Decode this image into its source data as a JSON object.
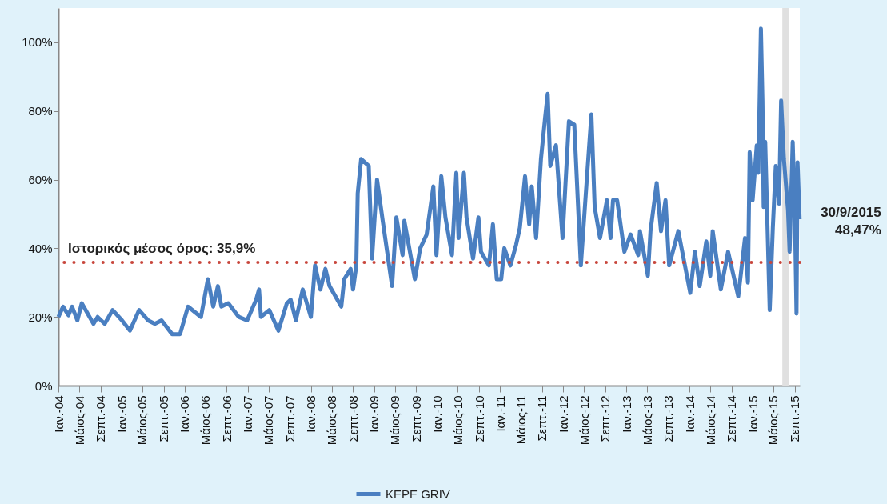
{
  "chart_data": {
    "type": "line",
    "x": [
      "2004-01-01",
      "2004-01-28",
      "2004-02-28",
      "2004-03-20",
      "2004-04-20",
      "2004-05-15",
      "2004-07-22",
      "2004-08-15",
      "2004-09-25",
      "2004-11-10",
      "2005-01-03",
      "2005-02-18",
      "2005-04-12",
      "2005-06-03",
      "2005-07-12",
      "2005-08-20",
      "2005-10-20",
      "2005-12-05",
      "2006-01-20",
      "2006-04-05",
      "2006-05-15",
      "2006-06-15",
      "2006-07-12",
      "2006-08-01",
      "2006-09-10",
      "2006-11-10",
      "2006-12-28",
      "2007-02-18",
      "2007-03-07",
      "2007-03-18",
      "2007-05-05",
      "2007-06-27",
      "2007-08-15",
      "2007-09-06",
      "2007-10-06",
      "2007-11-15",
      "2008-01-01",
      "2008-01-25",
      "2008-02-25",
      "2008-03-25",
      "2008-04-18",
      "2008-06-25",
      "2008-07-12",
      "2008-08-18",
      "2008-09-01",
      "2008-09-20",
      "2008-09-28",
      "2008-10-18",
      "2008-12-01",
      "2008-12-20",
      "2009-01-18",
      "2009-02-20",
      "2009-04-15",
      "2009-05-10",
      "2009-06-15",
      "2009-06-25",
      "2009-08-25",
      "2009-09-25",
      "2009-11-01",
      "2009-12-10",
      "2009-12-28",
      "2010-01-25",
      "2010-02-18",
      "2010-03-28",
      "2010-04-22",
      "2010-05-05",
      "2010-06-05",
      "2010-06-20",
      "2010-07-28",
      "2010-08-28",
      "2010-09-12",
      "2010-10-28",
      "2010-11-20",
      "2010-12-12",
      "2011-01-07",
      "2011-01-25",
      "2011-03-01",
      "2011-04-03",
      "2011-04-25",
      "2011-05-25",
      "2011-06-18",
      "2011-07-03",
      "2011-07-28",
      "2011-08-25",
      "2011-09-18",
      "2011-10-03",
      "2011-10-18",
      "2011-11-20",
      "2011-12-28",
      "2012-02-03",
      "2012-03-05",
      "2012-04-12",
      "2012-05-15",
      "2012-06-12",
      "2012-07-01",
      "2012-08-01",
      "2012-09-10",
      "2012-10-01",
      "2012-10-15",
      "2012-11-08",
      "2012-12-20",
      "2013-01-25",
      "2013-03-10",
      "2013-03-20",
      "2013-05-05",
      "2013-05-20",
      "2013-06-25",
      "2013-07-20",
      "2013-08-15",
      "2013-09-05",
      "2013-10-28",
      "2014-01-05",
      "2014-02-01",
      "2014-03-01",
      "2014-04-08",
      "2014-05-01",
      "2014-05-15",
      "2014-07-01",
      "2014-08-12",
      "2014-10-10",
      "2014-11-18",
      "2014-12-05",
      "2014-12-15",
      "2015-01-01",
      "2015-01-25",
      "2015-02-03",
      "2015-02-18",
      "2015-02-27",
      "2015-03-06",
      "2015-03-15",
      "2015-04-10",
      "2015-04-28",
      "2015-05-15",
      "2015-06-03",
      "2015-06-15",
      "2015-07-01",
      "2015-07-25",
      "2015-08-03",
      "2015-08-21",
      "2015-09-03",
      "2015-09-12",
      "2015-09-18",
      "2015-09-30"
    ],
    "series": [
      {
        "name": "KEPE GRIV",
        "color": "#4a7fc1",
        "values": [
          20,
          23,
          20.5,
          23,
          19,
          24,
          18,
          20,
          18,
          22,
          19,
          16,
          22,
          19,
          18,
          19,
          15,
          15,
          23,
          20,
          31,
          23,
          29,
          23,
          24,
          20,
          19,
          25,
          28,
          20,
          22,
          16,
          24,
          25,
          19,
          28,
          20,
          35,
          28,
          34,
          29,
          23,
          31,
          34,
          28,
          35,
          56,
          66,
          64,
          37,
          60,
          48,
          29,
          49,
          38,
          48,
          31,
          40,
          44,
          58,
          38,
          61,
          49,
          38,
          62,
          43,
          62,
          49,
          37,
          49,
          39,
          35,
          47,
          31,
          31,
          40,
          35,
          41,
          46,
          61,
          47,
          58,
          43,
          66,
          78,
          85,
          64,
          70,
          43,
          77,
          76,
          35,
          59,
          79,
          52,
          43,
          54,
          43,
          54,
          54,
          39,
          44,
          38,
          45,
          32,
          45,
          59,
          45,
          54,
          35,
          45,
          27,
          39,
          29,
          42,
          32,
          45,
          28,
          39,
          26,
          43,
          30,
          68,
          54,
          70,
          62,
          104,
          83,
          52,
          71,
          22,
          46,
          64,
          53,
          83,
          66,
          51,
          39,
          71,
          49,
          21,
          65,
          48.47
        ]
      }
    ],
    "xlim": [
      "2004-01-01",
      "2015-10-01"
    ],
    "xticks": [
      {
        "value": "2004-01-01",
        "label": "Ιαν.-04"
      },
      {
        "value": "2004-05-01",
        "label": "Μάιος-04"
      },
      {
        "value": "2004-09-01",
        "label": "Σεπτ.-04"
      },
      {
        "value": "2005-01-01",
        "label": "Ιαν.-05"
      },
      {
        "value": "2005-05-01",
        "label": "Μάιος-05"
      },
      {
        "value": "2005-09-01",
        "label": "Σεπτ.-05"
      },
      {
        "value": "2006-01-01",
        "label": "Ιαν.-06"
      },
      {
        "value": "2006-05-01",
        "label": "Μάιος-06"
      },
      {
        "value": "2006-09-01",
        "label": "Σεπτ.-06"
      },
      {
        "value": "2007-01-01",
        "label": "Ιαν.-07"
      },
      {
        "value": "2007-05-01",
        "label": "Μάιος-07"
      },
      {
        "value": "2007-09-01",
        "label": "Σεπτ.-07"
      },
      {
        "value": "2008-01-01",
        "label": "Ιαν.-08"
      },
      {
        "value": "2008-05-01",
        "label": "Μάιος-08"
      },
      {
        "value": "2008-09-01",
        "label": "Σεπτ.-08"
      },
      {
        "value": "2009-01-01",
        "label": "Ιαν.-09"
      },
      {
        "value": "2009-05-01",
        "label": "Μάιος-09"
      },
      {
        "value": "2009-09-01",
        "label": "Σεπτ.-09"
      },
      {
        "value": "2010-01-01",
        "label": "Ιαν.-10"
      },
      {
        "value": "2010-05-01",
        "label": "Μάιος-10"
      },
      {
        "value": "2010-09-01",
        "label": "Σεπτ.-10"
      },
      {
        "value": "2011-01-01",
        "label": "Ιαν.-11"
      },
      {
        "value": "2011-05-01",
        "label": "Μάιος-11"
      },
      {
        "value": "2011-09-01",
        "label": "Σεπτ.-11"
      },
      {
        "value": "2012-01-01",
        "label": "Ιαν.-12"
      },
      {
        "value": "2012-05-01",
        "label": "Μάιος-12"
      },
      {
        "value": "2012-09-01",
        "label": "Σεπτ.-12"
      },
      {
        "value": "2013-01-01",
        "label": "Ιαν.-13"
      },
      {
        "value": "2013-05-01",
        "label": "Μάιος-13"
      },
      {
        "value": "2013-09-01",
        "label": "Σεπτ.-13"
      },
      {
        "value": "2014-01-01",
        "label": "Ιαν.-14"
      },
      {
        "value": "2014-05-01",
        "label": "Μάιος-14"
      },
      {
        "value": "2014-09-01",
        "label": "Σεπτ.-14"
      },
      {
        "value": "2015-01-01",
        "label": "Ιαν.-15"
      },
      {
        "value": "2015-05-01",
        "label": "Μάιος-15"
      },
      {
        "value": "2015-09-01",
        "label": "Σεπτ.-15"
      }
    ],
    "ylim": [
      0,
      110
    ],
    "yticks": [
      {
        "value": 0,
        "label": "0%"
      },
      {
        "value": 20,
        "label": "20%"
      },
      {
        "value": 40,
        "label": "40%"
      },
      {
        "value": 60,
        "label": "60%"
      },
      {
        "value": 80,
        "label": "80%"
      },
      {
        "value": 100,
        "label": "100%"
      }
    ],
    "ref_lines": [
      {
        "axis": "y",
        "value": 35.9,
        "label": "Ιστορικός μέσος όρος: 35,9%",
        "color": "#c8463c",
        "line_style": "dotted"
      }
    ],
    "bands": [
      {
        "axis": "x",
        "from": "2015-06-22",
        "to": "2015-07-31",
        "color": "#e0e0e0"
      }
    ],
    "annotations": [
      {
        "text": "30/9/2015\n48,47%",
        "x": "2015-09-30",
        "y": 48.47
      }
    ],
    "legend": "bottom",
    "grid": false,
    "line_style": "solid",
    "marker": "none"
  }
}
